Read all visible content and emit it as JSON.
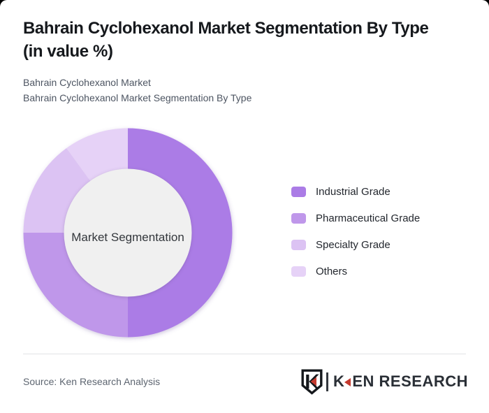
{
  "header": {
    "title": "Bahrain Cyclohexanol Market Segmentation By Type\n(in value %)",
    "subtitle_line1": "Bahrain Cyclohexanol Market",
    "subtitle_line2": "Bahrain Cyclohexanol Market Segmentation By Type"
  },
  "chart_data": {
    "type": "pie",
    "donut": true,
    "title": "Bahrain Cyclohexanol Market Segmentation By Type (in value %)",
    "center_label": "Market Segmentation",
    "categories": [
      "Industrial Grade",
      "Pharmaceutical Grade",
      "Specialty Grade",
      "Others"
    ],
    "values": [
      50,
      25,
      15,
      10
    ],
    "unit": "value %",
    "start_angle_deg": 0,
    "direction": "clockwise",
    "legend_position": "right",
    "colors": [
      "#ab7ce6",
      "#bf97ea",
      "#dcc3f3",
      "#e6d2f7"
    ],
    "center_circle_color": "#f0f0f0",
    "outer_radius_px": 149.5,
    "inner_radius_px": 91.5
  },
  "footer": {
    "source": "Source: Ken Research Analysis",
    "logo": {
      "shield_icon": "ken-research-shield-icon",
      "wordmark_k": "K",
      "wordmark_rest": "EN RESEARCH",
      "accent_red": "#c43a2f",
      "ink": "#2a2f36"
    }
  },
  "colors": {
    "page_background": "#ffffff",
    "title_text": "#16191d",
    "subtitle_text": "#4d5562",
    "legend_text": "#23272e",
    "divider": "#e2e3e5",
    "source_text": "#5d6570"
  }
}
